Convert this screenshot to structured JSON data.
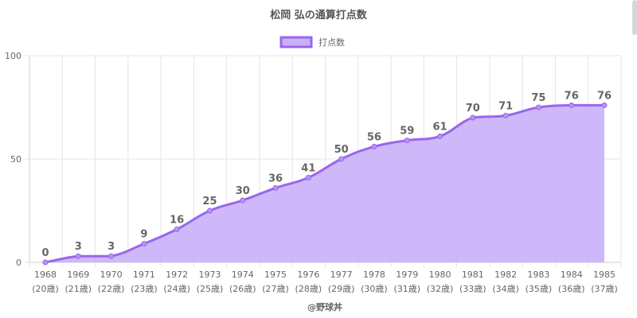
{
  "chart_data": {
    "type": "area",
    "title": "松岡 弘の通算打点数",
    "legend": {
      "position": "top",
      "items": [
        "打点数"
      ]
    },
    "x": [
      "1968",
      "1969",
      "1970",
      "1971",
      "1972",
      "1973",
      "1974",
      "1975",
      "1976",
      "1977",
      "1978",
      "1979",
      "1980",
      "1981",
      "1982",
      "1983",
      "1984",
      "1985"
    ],
    "x_sublabels": [
      "(20歳)",
      "(21歳)",
      "(22歳)",
      "(23歳)",
      "(24歳)",
      "(25歳)",
      "(26歳)",
      "(27歳)",
      "(28歳)",
      "(29歳)",
      "(30歳)",
      "(31歳)",
      "(32歳)",
      "(33歳)",
      "(34歳)",
      "(35歳)",
      "(36歳)",
      "(37歳)"
    ],
    "series": [
      {
        "name": "打点数",
        "values": [
          0,
          3,
          3,
          9,
          16,
          25,
          30,
          36,
          41,
          50,
          56,
          59,
          61,
          70,
          71,
          75,
          76,
          76
        ]
      }
    ],
    "ylim": [
      0,
      100
    ],
    "yticks": [
      0,
      50,
      100
    ],
    "grid": true,
    "colors": {
      "line": "#9966ee",
      "fill": "#c9b0f8",
      "grid": "#e6e6e6",
      "text": "#666666"
    },
    "source": "@野球丼"
  }
}
